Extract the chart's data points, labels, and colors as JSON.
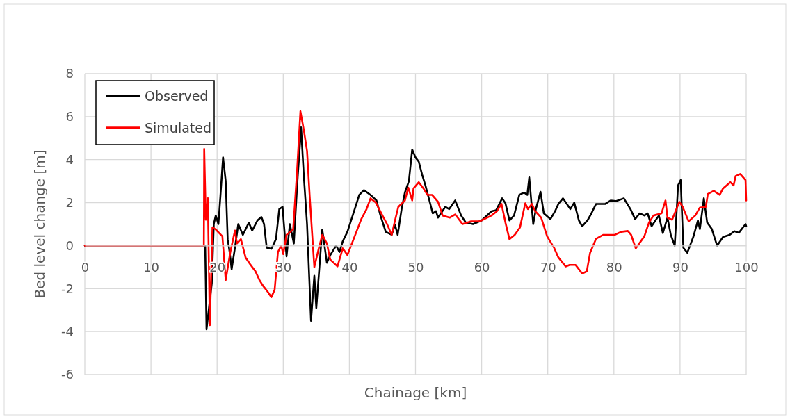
{
  "chart_data": {
    "type": "line",
    "xlabel": "Chainage [km]",
    "ylabel": "Bed level change [m]",
    "xlim": [
      0,
      100
    ],
    "xticks": [
      0,
      10,
      20,
      30,
      40,
      50,
      60,
      70,
      80,
      90,
      100
    ],
    "ylim": [
      -6,
      8
    ],
    "yticks": [
      -6,
      -4,
      -2,
      0,
      2,
      4,
      6,
      8
    ],
    "grid": true,
    "legend": "top left",
    "line_style": "solid",
    "marker": "none",
    "series": [
      {
        "name": "Observed",
        "color": "#000000",
        "x": [
          0,
          18.2,
          18.4,
          19.2,
          19.5,
          19.8,
          20.2,
          20.5,
          20.9,
          21.3,
          21.6,
          21.9,
          22.2,
          22.7,
          23.2,
          23.9,
          24.8,
          25.3,
          26.1,
          26.7,
          27.1,
          27.5,
          28.2,
          28.9,
          29.4,
          29.9,
          30.1,
          30.5,
          31.0,
          31.6,
          32.1,
          32.7,
          33.1,
          33.6,
          34.2,
          34.7,
          35.0,
          35.9,
          36.6,
          37.1,
          38.0,
          38.5,
          39.0,
          39.7,
          40.5,
          41.5,
          42.2,
          43.2,
          44.1,
          44.7,
          45.5,
          46.4,
          46.9,
          47.3,
          47.9,
          48.4,
          49.0,
          49.5,
          50.0,
          50.5,
          51.0,
          51.5,
          52.1,
          52.6,
          53.1,
          53.4,
          54.5,
          55.1,
          56.0,
          56.9,
          57.6,
          58.7,
          60.0,
          61.5,
          62.2,
          63.1,
          63.6,
          64.2,
          64.9,
          65.7,
          66.4,
          66.9,
          67.2,
          67.8,
          68.2,
          68.9,
          69.4,
          70.4,
          71.1,
          71.6,
          72.3,
          73.4,
          74.0,
          74.7,
          75.2,
          76.0,
          76.6,
          77.3,
          78.7,
          79.5,
          80.3,
          81.5,
          82.5,
          83.2,
          83.9,
          84.6,
          85.1,
          85.7,
          86.8,
          87.4,
          88.1,
          88.6,
          89.2,
          89.7,
          90.1,
          90.5,
          91.1,
          92.0,
          92.7,
          93.0,
          93.6,
          94.1,
          94.8,
          95.6,
          96.5,
          97.5,
          98.2,
          98.9,
          99.9,
          100
        ],
        "values": [
          0,
          0,
          -3.9,
          -1.75,
          1.0,
          1.4,
          1.0,
          2.3,
          4.1,
          3.0,
          0.3,
          -0.3,
          -1.1,
          -0.1,
          1.0,
          0.5,
          1.07,
          0.7,
          1.17,
          1.33,
          1.0,
          -0.1,
          -0.15,
          0.3,
          1.7,
          1.8,
          1.0,
          -0.5,
          1.0,
          0.1,
          2.8,
          5.5,
          3.3,
          1.0,
          -3.5,
          -1.4,
          -2.9,
          0.75,
          -0.8,
          -0.45,
          0.0,
          -0.3,
          0.2,
          0.64,
          1.4,
          2.36,
          2.58,
          2.36,
          2.1,
          1.4,
          0.64,
          0.5,
          0.97,
          0.5,
          1.7,
          2.47,
          3.0,
          4.47,
          4.1,
          3.9,
          3.3,
          2.8,
          2.1,
          1.5,
          1.6,
          1.3,
          1.8,
          1.7,
          2.1,
          1.4,
          1.07,
          1.0,
          1.17,
          1.6,
          1.65,
          2.2,
          1.97,
          1.17,
          1.4,
          2.36,
          2.47,
          2.36,
          3.17,
          1.0,
          1.7,
          2.5,
          1.5,
          1.23,
          1.6,
          1.94,
          2.2,
          1.7,
          2.0,
          1.17,
          0.9,
          1.17,
          1.5,
          1.94,
          1.94,
          2.1,
          2.07,
          2.2,
          1.7,
          1.23,
          1.5,
          1.4,
          1.5,
          0.9,
          1.4,
          0.58,
          1.3,
          0.5,
          0.0,
          2.8,
          3.05,
          -0.1,
          -0.33,
          0.4,
          1.17,
          0.77,
          2.2,
          1.07,
          0.77,
          0.0,
          0.4,
          0.5,
          0.67,
          0.6,
          1.0,
          0.9
        ]
      },
      {
        "name": "Simulated",
        "color": "#ff0000",
        "x": [
          0,
          18.0,
          18.05,
          18.3,
          18.6,
          18.9,
          19.3,
          19.8,
          20.8,
          21.3,
          22.0,
          22.7,
          23.0,
          23.6,
          24.3,
          25.0,
          25.8,
          26.4,
          26.9,
          27.7,
          28.2,
          28.7,
          29.2,
          29.7,
          30.0,
          30.5,
          31.5,
          32.1,
          32.6,
          33.1,
          33.6,
          34.0,
          34.7,
          35.4,
          35.9,
          36.6,
          37.1,
          38.2,
          39.0,
          39.7,
          40.8,
          41.8,
          42.6,
          43.2,
          44.0,
          45.0,
          45.7,
          46.4,
          46.9,
          47.4,
          48.4,
          48.9,
          49.5,
          49.7,
          50.5,
          51.2,
          51.8,
          52.5,
          53.4,
          54.1,
          55.2,
          56.0,
          57.1,
          58.4,
          59.7,
          61.5,
          62.3,
          63.0,
          63.6,
          64.2,
          65.0,
          65.8,
          66.6,
          67.0,
          67.6,
          68.1,
          69.0,
          69.9,
          71.0,
          71.6,
          72.7,
          73.3,
          74.2,
          75.2,
          75.9,
          76.4,
          77.3,
          78.4,
          80.1,
          81.1,
          82.1,
          82.6,
          83.3,
          84.6,
          85.3,
          86.0,
          87.2,
          87.8,
          88.1,
          88.8,
          89.9,
          90.4,
          91.3,
          92.3,
          93.0,
          93.9,
          94.2,
          95.1,
          96.0,
          96.5,
          97.6,
          98.1,
          98.4,
          99.1,
          99.9,
          100
        ],
        "values": [
          0,
          0,
          4.5,
          1.2,
          2.2,
          -3.7,
          0.85,
          0.75,
          0.43,
          -1.6,
          -0.3,
          0.7,
          0.1,
          0.3,
          -0.55,
          -0.87,
          -1.2,
          -1.6,
          -1.85,
          -2.17,
          -2.4,
          -2.06,
          -0.3,
          0,
          -0.4,
          0.5,
          0.75,
          3.5,
          6.25,
          5.4,
          4.4,
          2.3,
          -1.0,
          -0.1,
          0.5,
          0.1,
          -0.65,
          -0.97,
          -0.13,
          -0.44,
          0.43,
          1.23,
          1.7,
          2.2,
          2.0,
          1.4,
          1.0,
          0.5,
          1.17,
          1.8,
          2.1,
          2.7,
          2.1,
          2.66,
          2.95,
          2.66,
          2.36,
          2.36,
          2.04,
          1.4,
          1.3,
          1.45,
          1.0,
          1.13,
          1.13,
          1.4,
          1.6,
          1.94,
          1.07,
          0.3,
          0.5,
          0.85,
          1.97,
          1.7,
          1.94,
          1.6,
          1.3,
          0.43,
          -0.13,
          -0.55,
          -0.97,
          -0.9,
          -0.9,
          -1.3,
          -1.2,
          -0.33,
          0.32,
          0.5,
          0.5,
          0.64,
          0.68,
          0.5,
          -0.13,
          0.43,
          1.07,
          1.4,
          1.5,
          2.1,
          1.3,
          1.2,
          2.04,
          1.8,
          1.13,
          1.4,
          1.77,
          1.8,
          2.4,
          2.55,
          2.36,
          2.66,
          2.95,
          2.8,
          3.23,
          3.33,
          3.05,
          2.1
        ]
      }
    ]
  }
}
